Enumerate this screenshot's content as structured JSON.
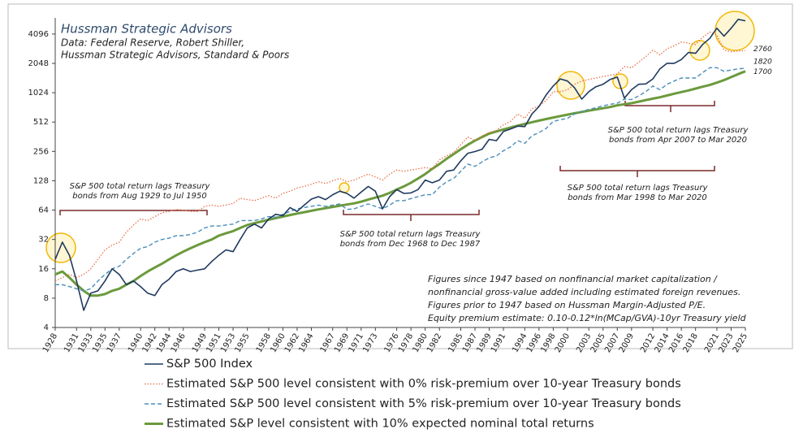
{
  "chart_data": {
    "type": "line",
    "title": "Hussman Strategic Advisors",
    "subtitle": [
      "Data: Federal Reserve, Robert Shiller,",
      "Hussman Strategic Advisors, Standard & Poors"
    ],
    "log_scale": true,
    "grid": false,
    "xlim": [
      1928,
      2025
    ],
    "ylim": [
      4,
      6000
    ],
    "yticks": [
      4,
      8,
      16,
      32,
      64,
      128,
      256,
      512,
      1024,
      2048,
      4096
    ],
    "xticks": [
      1928,
      1931,
      1933,
      1935,
      1937,
      1940,
      1942,
      1944,
      1946,
      1949,
      1951,
      1953,
      1955,
      1958,
      1960,
      1962,
      1964,
      1967,
      1969,
      1971,
      1973,
      1976,
      1978,
      1980,
      1982,
      1985,
      1987,
      1989,
      1991,
      1994,
      1996,
      1998,
      2000,
      2003,
      2005,
      2007,
      2009,
      2012,
      2014,
      2016,
      2018,
      2021,
      2023,
      2025
    ],
    "x": [
      1928,
      1929,
      1930,
      1931,
      1932,
      1933,
      1934,
      1935,
      1936,
      1937,
      1938,
      1939,
      1940,
      1941,
      1942,
      1943,
      1944,
      1945,
      1946,
      1947,
      1948,
      1949,
      1950,
      1951,
      1952,
      1953,
      1954,
      1955,
      1956,
      1957,
      1958,
      1959,
      1960,
      1961,
      1962,
      1963,
      1964,
      1965,
      1966,
      1967,
      1968,
      1969,
      1970,
      1971,
      1972,
      1973,
      1974,
      1975,
      1976,
      1977,
      1978,
      1979,
      1980,
      1981,
      1982,
      1983,
      1984,
      1985,
      1986,
      1987,
      1988,
      1989,
      1990,
      1991,
      1992,
      1993,
      1994,
      1995,
      1996,
      1997,
      1998,
      1999,
      2000,
      2001,
      2002,
      2003,
      2004,
      2005,
      2006,
      2007,
      2008,
      2009,
      2010,
      2011,
      2012,
      2013,
      2014,
      2015,
      2016,
      2017,
      2018,
      2019,
      2020,
      2021,
      2022,
      2023,
      2024,
      2025
    ],
    "series": [
      {
        "name": "S&P 500 Index",
        "color": "#1f3a5f",
        "style": "solid",
        "width": 1.6,
        "values": [
          20,
          30,
          22,
          12,
          6,
          9,
          9.5,
          12,
          16,
          14,
          11,
          12,
          10.5,
          9,
          8.5,
          11,
          12.5,
          15,
          16,
          15,
          15.5,
          16,
          19,
          22,
          25,
          24,
          32,
          42,
          46,
          42,
          52,
          58,
          56,
          68,
          62,
          72,
          83,
          88,
          82,
          92,
          100,
          95,
          85,
          98,
          112,
          100,
          66,
          88,
          104,
          95,
          96,
          104,
          130,
          122,
          130,
          160,
          165,
          205,
          245,
          255,
          270,
          340,
          330,
          410,
          435,
          465,
          460,
          620,
          740,
          970,
          1200,
          1420,
          1350,
          1150,
          880,
          1050,
          1180,
          1250,
          1400,
          1480,
          900,
          1100,
          1250,
          1260,
          1420,
          1800,
          2050,
          2050,
          2240,
          2650,
          2600,
          3200,
          3700,
          4700,
          3900,
          4700,
          5800,
          5600
        ]
      },
      {
        "name": "Estimated S&P 500 level consistent with 0% risk-premium over 10-year Treasury bonds",
        "color": "#e8704a",
        "style": "dotted",
        "width": 1.3,
        "end_label": "2760",
        "values": [
          12,
          13,
          14,
          13,
          14,
          16,
          20,
          25,
          28,
          30,
          38,
          45,
          52,
          50,
          55,
          60,
          62,
          65,
          64,
          62,
          62,
          70,
          72,
          70,
          72,
          75,
          85,
          82,
          80,
          85,
          90,
          85,
          95,
          100,
          108,
          112,
          118,
          125,
          120,
          128,
          135,
          125,
          130,
          140,
          150,
          140,
          130,
          150,
          165,
          160,
          165,
          170,
          175,
          170,
          210,
          230,
          250,
          300,
          360,
          330,
          370,
          400,
          420,
          480,
          520,
          620,
          560,
          700,
          750,
          850,
          1050,
          1050,
          1100,
          1250,
          1350,
          1400,
          1450,
          1500,
          1550,
          1600,
          1900,
          1850,
          2100,
          2400,
          2800,
          2500,
          2900,
          3100,
          3400,
          3300,
          3200,
          3800,
          4300,
          4000,
          2800,
          2700,
          2750,
          2760
        ]
      },
      {
        "name": "Estimated S&P 500 level consistent with 5% risk-premium over 10-year Treasury bonds",
        "color": "#4a8db8",
        "style": "dashed",
        "width": 1.4,
        "end_label": "1820",
        "values": [
          11,
          11,
          10.5,
          10,
          9.5,
          10,
          12,
          14,
          16,
          17,
          20,
          23,
          26,
          27,
          30,
          32,
          33,
          35,
          35,
          36,
          38,
          42,
          44,
          44,
          45,
          46,
          50,
          50,
          50,
          52,
          55,
          54,
          58,
          62,
          66,
          68,
          70,
          72,
          70,
          72,
          74,
          65,
          66,
          70,
          74,
          70,
          66,
          72,
          80,
          80,
          84,
          88,
          92,
          92,
          110,
          125,
          135,
          160,
          190,
          180,
          200,
          220,
          230,
          260,
          285,
          330,
          310,
          370,
          400,
          440,
          520,
          540,
          560,
          620,
          660,
          690,
          720,
          750,
          780,
          800,
          880,
          870,
          950,
          1050,
          1200,
          1100,
          1250,
          1350,
          1450,
          1450,
          1450,
          1650,
          1850,
          1850,
          1700,
          1750,
          1800,
          1820
        ]
      },
      {
        "name": "Estimated S&P level consistent with 10% expected nominal total returns",
        "color": "#6b9a3c",
        "style": "solid",
        "width": 3,
        "end_label": "1700",
        "values": [
          14,
          15,
          13,
          11,
          9.5,
          8.5,
          8.5,
          8.8,
          9.5,
          10,
          11,
          12,
          13.5,
          15,
          16.5,
          18,
          20,
          22,
          24,
          26,
          28,
          30,
          32,
          35,
          37,
          39,
          42,
          45,
          47,
          49,
          51,
          53,
          55,
          57,
          59,
          61,
          63,
          65,
          67,
          69,
          71,
          73,
          75,
          78,
          82,
          86,
          90,
          96,
          104,
          112,
          122,
          135,
          150,
          170,
          190,
          215,
          240,
          270,
          300,
          330,
          360,
          390,
          410,
          430,
          450,
          470,
          490,
          510,
          530,
          550,
          570,
          590,
          610,
          630,
          650,
          670,
          690,
          710,
          730,
          760,
          780,
          800,
          830,
          860,
          890,
          920,
          960,
          1000,
          1040,
          1080,
          1130,
          1180,
          1230,
          1300,
          1380,
          1480,
          1590,
          1700
        ]
      }
    ],
    "annotations": [
      [
        "S&P 500 total return lags Treasury",
        "bonds from Aug 1929 to Jul 1950"
      ],
      [
        "S&P 500 total return lags Treasury",
        "bonds from Dec 1968 to Dec 1987"
      ],
      [
        "S&P 500 total return lags Treasury",
        "bonds from Apr 2007 to Mar 2020"
      ],
      [
        "S&P 500 total return lags Treasury",
        "bonds from Mar 1998 to Mar 2020"
      ]
    ],
    "note": [
      "Figures since 1947 based on nonfinancial market capitalization /",
      "nonfinancial gross-value added including estimated foreign revenues.",
      "Figures prior to 1947 based on Hussman Margin-Adjusted P/E.",
      "Equity premium estimate: 0.10-0.12*ln(MCap/GVA)-10yr Treasury yield"
    ]
  }
}
